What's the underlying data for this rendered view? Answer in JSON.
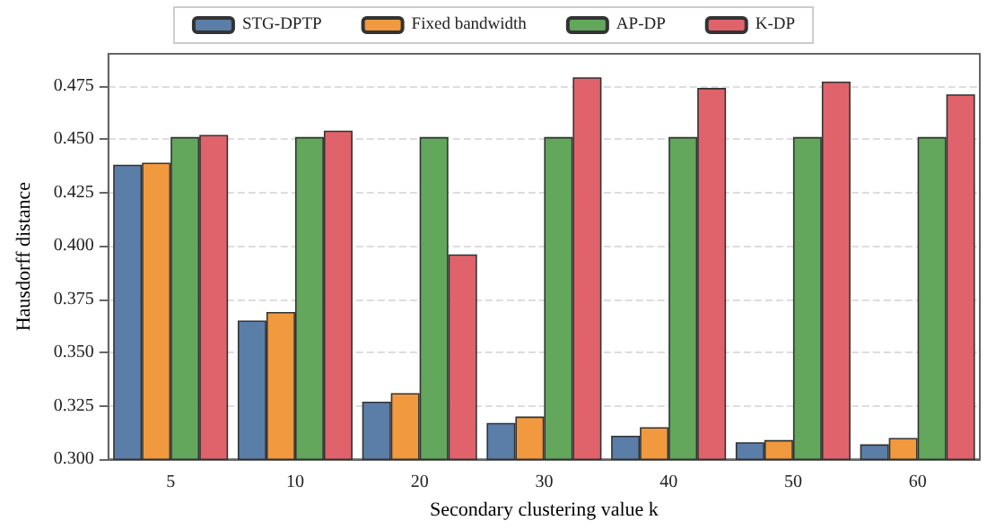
{
  "chart_data": {
    "type": "bar",
    "xlabel": "Secondary clustering value k",
    "ylabel": "Hausdorff distance",
    "categories": [
      "5",
      "10",
      "20",
      "30",
      "40",
      "50",
      "60"
    ],
    "series": [
      {
        "name": "STG-DPTP",
        "color": "#5a7ea8",
        "values": [
          0.438,
          0.365,
          0.327,
          0.317,
          0.311,
          0.308,
          0.307
        ]
      },
      {
        "name": "Fixed bandwidth",
        "color": "#f0993e",
        "values": [
          0.439,
          0.369,
          0.331,
          0.32,
          0.315,
          0.309,
          0.31
        ]
      },
      {
        "name": "AP-DP",
        "color": "#62a75c",
        "values": [
          0.451,
          0.451,
          0.451,
          0.451,
          0.451,
          0.451,
          0.451
        ]
      },
      {
        "name": "K-DP",
        "color": "#e0636b",
        "values": [
          0.452,
          0.454,
          0.396,
          0.479,
          0.474,
          0.477,
          0.471
        ]
      }
    ],
    "ylim": [
      0.3,
      0.49
    ],
    "yticks": [
      {
        "value": 0.3,
        "label": "0.300"
      },
      0.325,
      {
        "value": 0.35,
        "label": "0.350"
      },
      0.375,
      {
        "value": 0.4,
        "label": "0.400"
      },
      0.425,
      {
        "value": 0.45,
        "label": "0.450"
      },
      0.475
    ],
    "grid": "y",
    "legend": "top"
  }
}
